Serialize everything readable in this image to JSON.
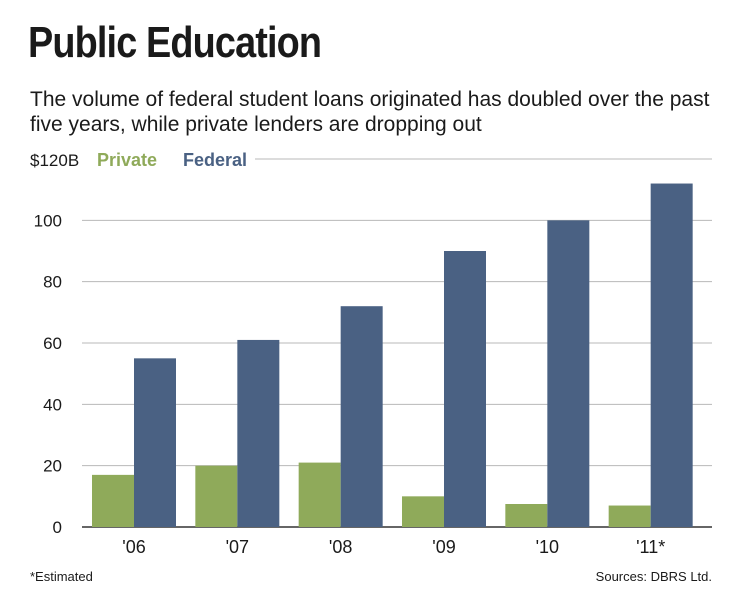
{
  "title": "Public Education",
  "subtitle": "The volume of federal student loans originated has doubled over the past five years, while private lenders are dropping out",
  "footnote": "*Estimated",
  "source": "Sources: DBRS Ltd.",
  "colors": {
    "private": "#8faa5a",
    "federal": "#4a6183",
    "grid": "#b8b8b8",
    "axis": "#333333"
  },
  "chart_data": {
    "type": "bar",
    "categories": [
      "'06",
      "'07",
      "'08",
      "'09",
      "'10",
      "'11*"
    ],
    "series": [
      {
        "name": "Private",
        "values": [
          17,
          20,
          21,
          10,
          7.5,
          7
        ]
      },
      {
        "name": "Federal",
        "values": [
          55,
          61,
          72,
          90,
          100,
          112
        ]
      }
    ],
    "ylim": [
      0,
      120
    ],
    "yticks": [
      0,
      20,
      40,
      60,
      80,
      100
    ],
    "top_tick_label": "$120B",
    "grid": true,
    "legend_placement": "top-left"
  }
}
